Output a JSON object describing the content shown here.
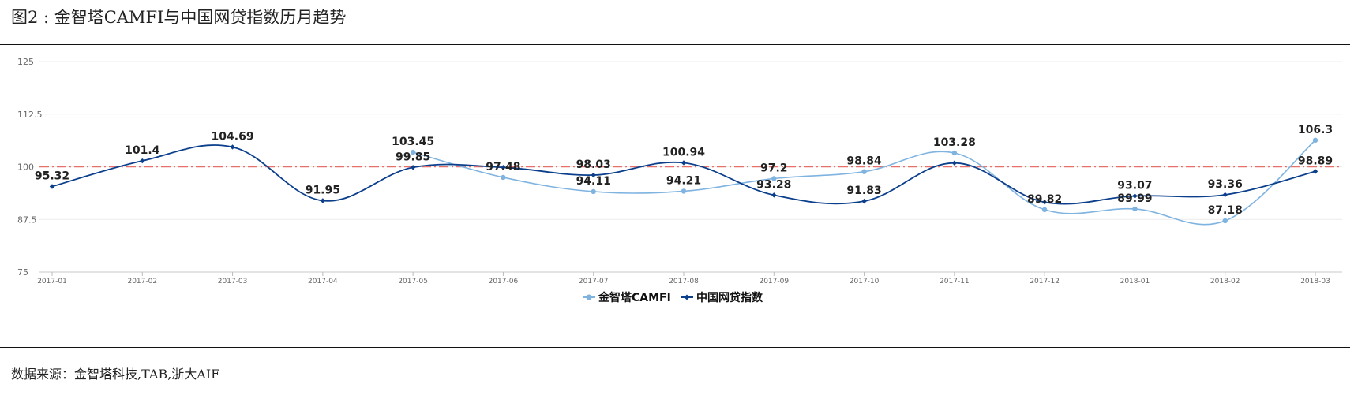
{
  "figure": {
    "title": "图2 : 金智塔CAMFI与中国网贷指数历月趋势",
    "source": "数据来源：金智塔科技,TAB,浙大AIF"
  },
  "chart_data": {
    "type": "line",
    "title": "",
    "xlabel": "",
    "ylabel": "",
    "categories": [
      "2017-01",
      "2017-02",
      "2017-03",
      "2017-04",
      "2017-05",
      "2017-06",
      "2017-07",
      "2017-08",
      "2017-09",
      "2017-10",
      "2017-11",
      "2017-12",
      "2018-01",
      "2018-02",
      "2018-03"
    ],
    "yticks": [
      "75",
      "87.5",
      "100",
      "112.5",
      "125"
    ],
    "ylim": [
      75,
      125
    ],
    "grid": true,
    "legend": "bottom-center",
    "reference_line": {
      "value": 100,
      "color": "#e8706a",
      "style": "dash-dot"
    },
    "series": [
      {
        "name": "金智塔CAMFI",
        "color": "#7fb3e0",
        "values": [
          null,
          null,
          null,
          null,
          103.45,
          97.48,
          94.11,
          94.21,
          97.2,
          98.84,
          103.28,
          89.82,
          89.99,
          87.18,
          106.3
        ],
        "labels": [
          null,
          null,
          null,
          null,
          "103.45",
          "97.48",
          "94.11",
          "94.21",
          "97.2",
          "98.84",
          "103.28",
          "89.82",
          "89.99",
          "87.18",
          "106.3"
        ]
      },
      {
        "name": "中国网贷指数",
        "color": "#0b3f8c",
        "values": [
          95.32,
          101.4,
          104.69,
          91.95,
          99.85,
          99.85,
          98.03,
          100.94,
          93.28,
          91.83,
          100.9,
          91.6,
          93.07,
          93.36,
          98.89
        ],
        "labels": [
          "95.32",
          "101.4",
          "104.69",
          "91.95",
          "99.85",
          null,
          "98.03",
          "100.94",
          "93.28",
          "91.83",
          null,
          null,
          "93.07",
          "93.36",
          "98.89"
        ]
      }
    ]
  }
}
